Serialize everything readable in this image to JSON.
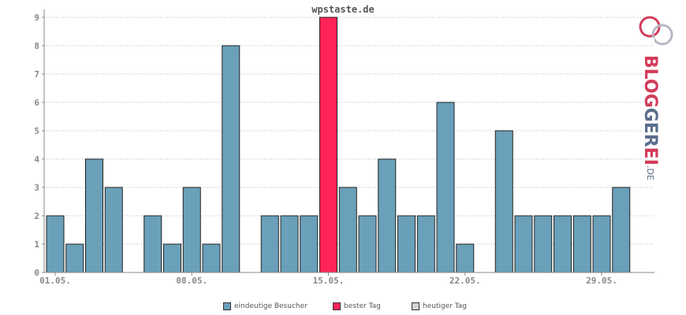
{
  "chart_data": {
    "type": "bar",
    "title": "wpstaste.de",
    "categories": [
      "01.05.",
      "02.05.",
      "03.05.",
      "04.05.",
      "05.05.",
      "06.05.",
      "07.05.",
      "08.05.",
      "09.05.",
      "10.05.",
      "11.05.",
      "12.05.",
      "13.05.",
      "14.05.",
      "15.05.",
      "16.05.",
      "17.05.",
      "18.05.",
      "19.05.",
      "20.05.",
      "21.05.",
      "22.05.",
      "23.05.",
      "24.05.",
      "25.05.",
      "26.05.",
      "27.05.",
      "28.05.",
      "29.05.",
      "30.05."
    ],
    "x_tick_labels": [
      "01.05.",
      "08.05.",
      "15.05.",
      "22.05.",
      "29.05."
    ],
    "x_tick_indices": [
      0,
      7,
      14,
      21,
      28
    ],
    "values": [
      2,
      1,
      4,
      3,
      0,
      2,
      1,
      3,
      1,
      8,
      0,
      2,
      2,
      2,
      9,
      3,
      2,
      4,
      2,
      2,
      6,
      1,
      0,
      5,
      2,
      2,
      2,
      2,
      2,
      3
    ],
    "highlight_index": 14,
    "ylim": [
      0,
      9
    ],
    "y_ticks": [
      "0",
      "1",
      "2",
      "3",
      "4",
      "5",
      "6",
      "7",
      "8",
      "9"
    ],
    "grid": true,
    "legend_position": "bottom",
    "colors": {
      "bar": "#6aa0ba",
      "best": "#ff2358",
      "today": "#d3d3d3",
      "bar_stroke": "#222222",
      "grid": "#bbbbbb",
      "axis": "#888888"
    },
    "legend": [
      {
        "label": "eindeutige Besucher",
        "color": "#6aa0ba"
      },
      {
        "label": "bester Tag",
        "color": "#ff2358"
      },
      {
        "label": "heutiger Tag",
        "color": "#d3d3d3"
      }
    ]
  },
  "brand": {
    "name_prefix": "BLOG",
    "name_mid": "GER",
    "name_suffix": "EI",
    "tld": ".DE"
  }
}
